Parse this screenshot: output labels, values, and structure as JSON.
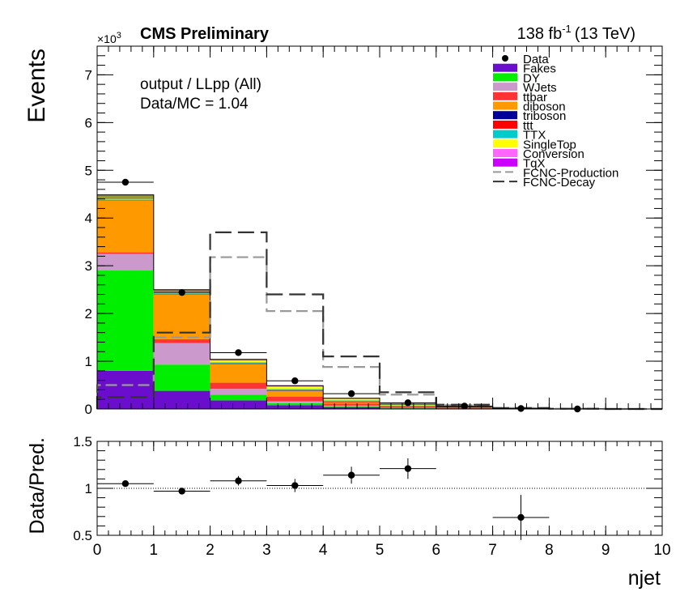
{
  "header": {
    "experiment": "CMS Preliminary",
    "lumi": "138 fb",
    "lumi_exp": "-1",
    "energy": "(13 TeV)",
    "exponent_base": "×10",
    "exponent_power": "3",
    "annotation_line1": "output / LLpp (All)",
    "annotation_line2": "Data/MC = 1.04"
  },
  "chart_data": [
    {
      "type": "bar",
      "stacked": true,
      "xlabel": "njet",
      "ylabel": "Events",
      "xlim": [
        0,
        10
      ],
      "ylim": [
        0,
        7.6
      ],
      "y_unit_multiplier": 1000,
      "y_ticks": [
        0,
        1,
        2,
        3,
        4,
        5,
        6,
        7
      ],
      "x_ticks": [
        0,
        1,
        2,
        3,
        4,
        5,
        6,
        7,
        8,
        9,
        10
      ],
      "bin_edges": [
        0,
        1,
        2,
        3,
        4,
        5,
        6,
        7,
        8,
        9,
        10
      ],
      "legend_position": "top-right",
      "series": [
        {
          "name": "Fakes",
          "color": "#6a0dcc",
          "values": [
            0.8,
            0.38,
            0.18,
            0.08,
            0.04,
            0.015,
            0.008,
            0.003,
            0.001,
            0
          ]
        },
        {
          "name": "DY",
          "color": "#00ee00",
          "values": [
            2.1,
            0.55,
            0.12,
            0.04,
            0.015,
            0.005,
            0.003,
            0.001,
            0,
            0
          ]
        },
        {
          "name": "WJets",
          "color": "#cc99cc",
          "values": [
            0.35,
            0.45,
            0.12,
            0.04,
            0.015,
            0.005,
            0.002,
            0.001,
            0,
            0
          ]
        },
        {
          "name": "ttbar",
          "color": "#ff3333",
          "values": [
            0.03,
            0.08,
            0.13,
            0.1,
            0.04,
            0.015,
            0.006,
            0.002,
            0.001,
            0
          ]
        },
        {
          "name": "diboson",
          "color": "#ff9900",
          "values": [
            1.1,
            0.95,
            0.4,
            0.12,
            0.04,
            0.012,
            0.004,
            0.001,
            0,
            0
          ]
        },
        {
          "name": "triboson",
          "color": "#000099",
          "values": [
            0.002,
            0.003,
            0.004,
            0.003,
            0.002,
            0.001,
            0.001,
            0,
            0,
            0
          ]
        },
        {
          "name": "ttt",
          "color": "#ff0000",
          "values": [
            0,
            0,
            0.001,
            0.002,
            0.002,
            0.001,
            0.001,
            0,
            0,
            0
          ]
        },
        {
          "name": "TTX",
          "color": "#00cccc",
          "values": [
            0.005,
            0.01,
            0.02,
            0.03,
            0.025,
            0.02,
            0.01,
            0.005,
            0.002,
            0
          ]
        },
        {
          "name": "SingleTop",
          "color": "#ffff00",
          "values": [
            0.005,
            0.02,
            0.04,
            0.06,
            0.04,
            0.025,
            0.012,
            0.004,
            0.001,
            0
          ]
        },
        {
          "name": "Conversion",
          "color": "#ff66ff",
          "values": [
            0.01,
            0.01,
            0.004,
            0.002,
            0.001,
            0,
            0,
            0,
            0,
            0
          ]
        },
        {
          "name": "Conversion",
          "color": "#999933",
          "values": [
            0.08,
            0.04,
            0.015,
            0.005,
            0.002,
            0.001,
            0,
            0,
            0,
            0
          ]
        },
        {
          "name": "TqX",
          "color": "#cc00ff",
          "values": [
            0.002,
            0.005,
            0.006,
            0.005,
            0.003,
            0.002,
            0.001,
            0,
            0,
            0
          ]
        }
      ],
      "data": {
        "name": "Data",
        "x": [
          0.5,
          1.5,
          2.5,
          3.5,
          4.5,
          5.5,
          6.5,
          7.5,
          8.5
        ],
        "y": [
          4.75,
          2.44,
          1.18,
          0.59,
          0.32,
          0.13,
          0.06,
          0.01,
          0.0
        ]
      },
      "signal_lines": [
        {
          "name": "FCNC-Production",
          "color": "#999999",
          "values": [
            0.5,
            1.5,
            3.18,
            2.05,
            0.88,
            0.3,
            0.08,
            0.02,
            0.005,
            0
          ]
        },
        {
          "name": "FCNC-Decay",
          "color": "#333333",
          "values": [
            0.25,
            1.6,
            3.7,
            2.4,
            1.1,
            0.35,
            0.09,
            0.02,
            0.005,
            0
          ]
        }
      ],
      "legend": [
        "Data",
        "Fakes",
        "DY",
        "WJets",
        "ttbar",
        "diboson",
        "triboson",
        "ttt",
        "TTX",
        "SingleTop",
        "Conversion",
        "TqX",
        "FCNC-Production",
        "FCNC-Decay"
      ]
    },
    {
      "type": "scatter",
      "xlabel": "njet",
      "ylabel": "Data/Pred.",
      "xlim": [
        0,
        10
      ],
      "ylim": [
        0.5,
        1.5
      ],
      "y_ticks": [
        0.5,
        1,
        1.5
      ],
      "y_tick_labels": [
        "0.5",
        "1",
        "1.5"
      ],
      "x_ticks": [
        0,
        1,
        2,
        3,
        4,
        5,
        6,
        7,
        8,
        9,
        10
      ],
      "reference_line": 1,
      "x": [
        0.5,
        1.5,
        2.5,
        3.5,
        4.5,
        5.5,
        7.5
      ],
      "y": [
        1.05,
        0.97,
        1.08,
        1.03,
        1.14,
        1.21,
        0.69
      ],
      "y_err": [
        0.02,
        0.03,
        0.05,
        0.07,
        0.09,
        0.11,
        0.24
      ]
    }
  ]
}
